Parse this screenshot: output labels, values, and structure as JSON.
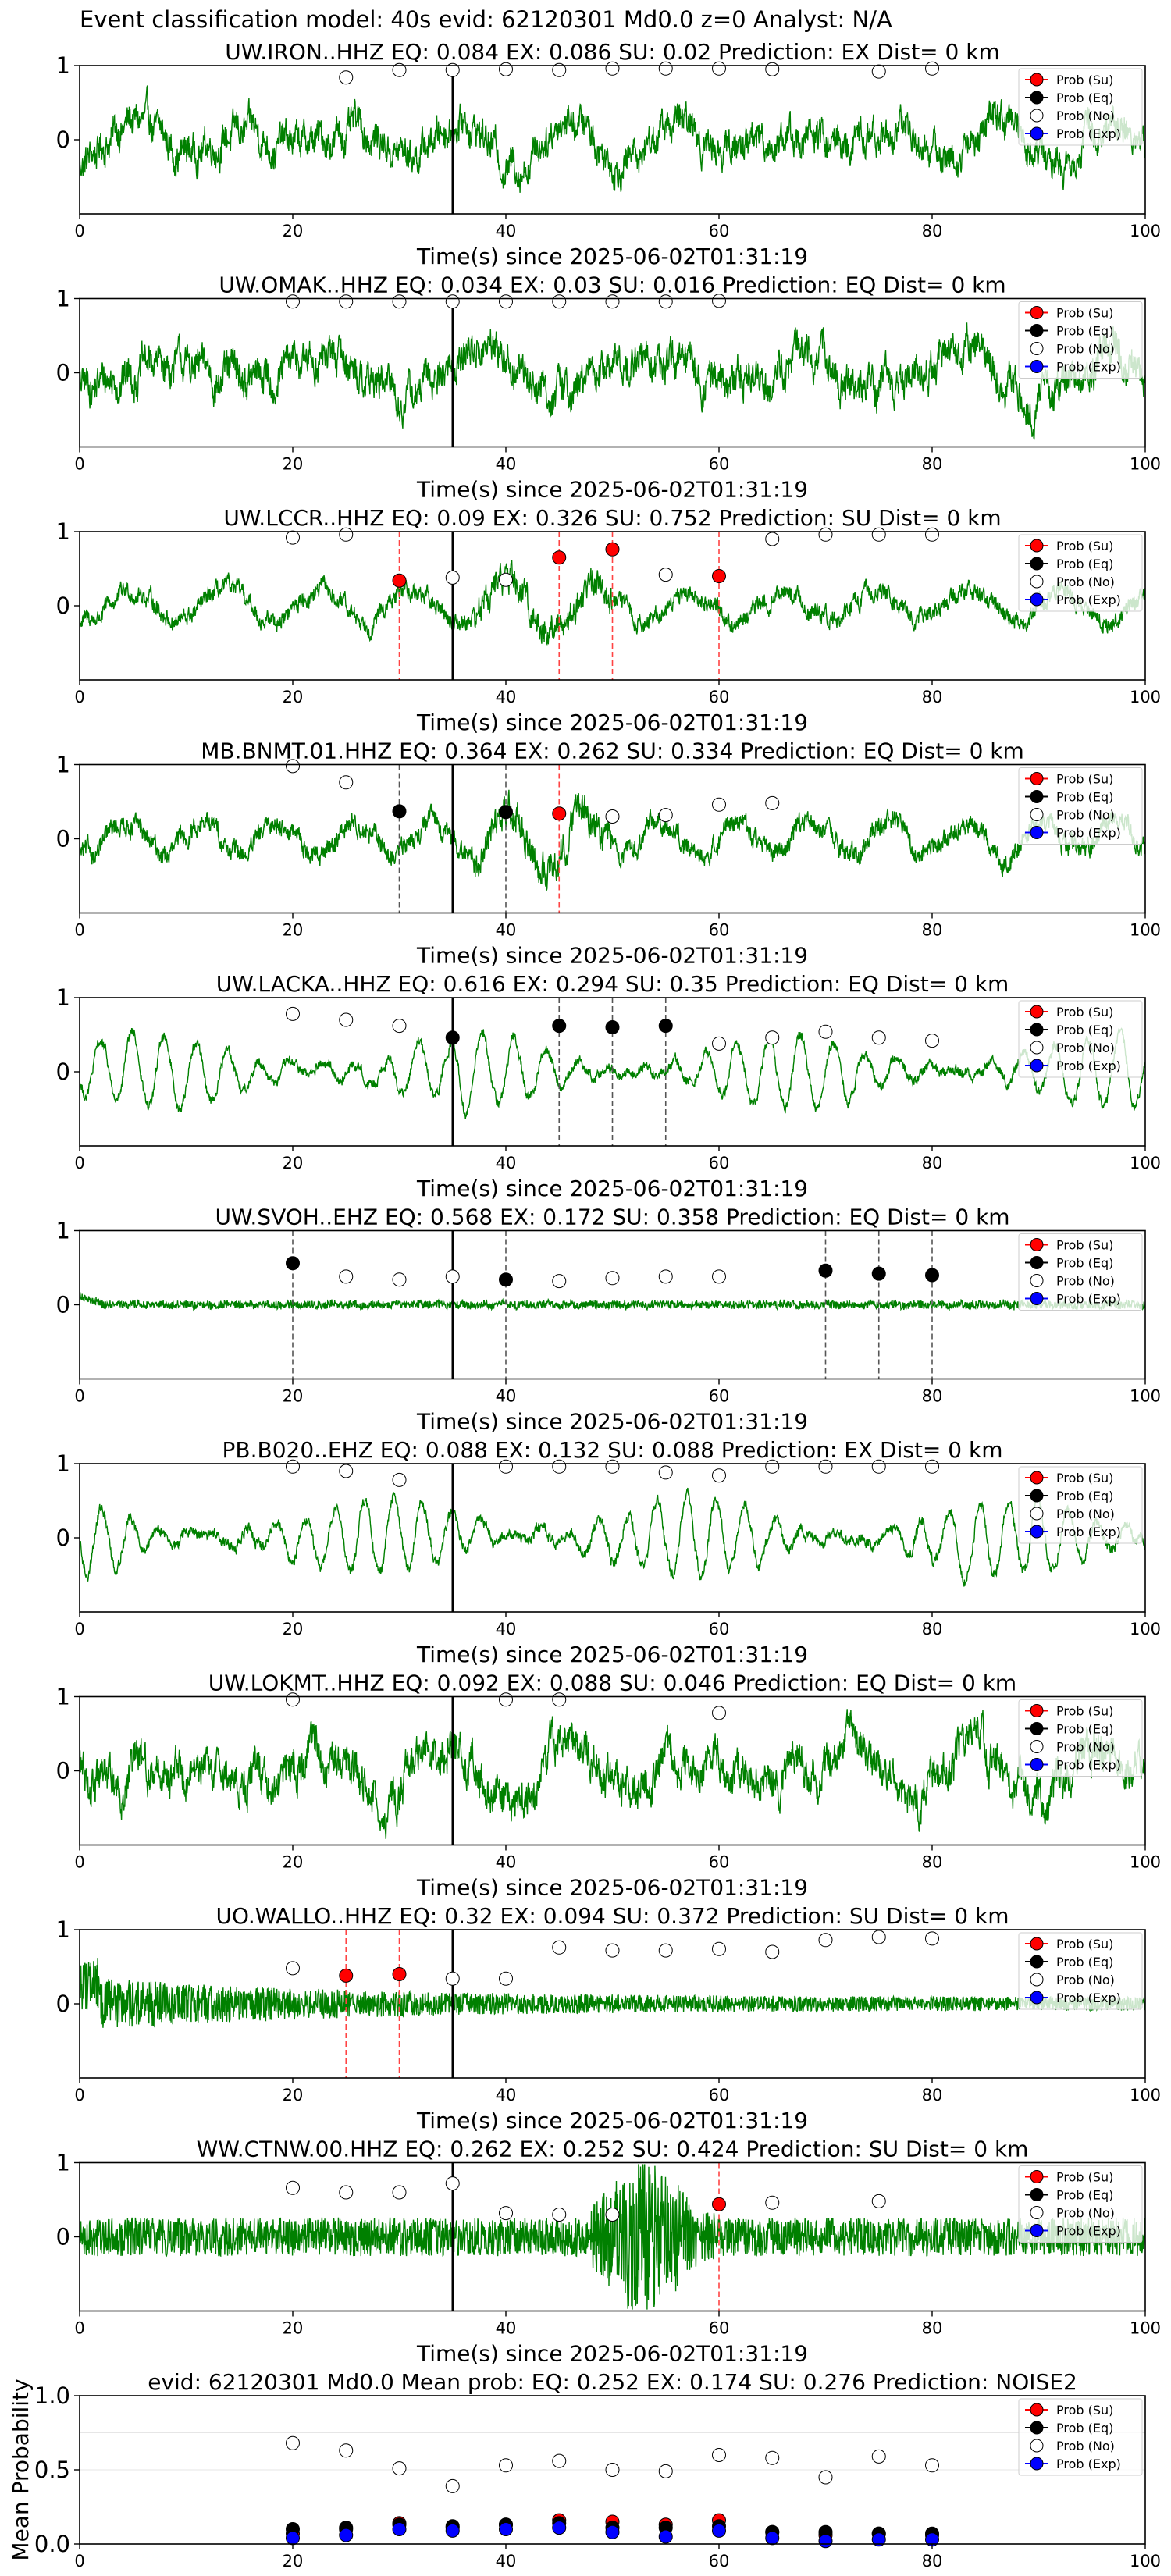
{
  "suptitle": "Event classification model: 40s evid: 62120301 Md0.0 z=0 Analyst: N/A",
  "colors": {
    "waveform": "#008000",
    "su": "#ff0000",
    "eq": "#000000",
    "no": "#ffffff",
    "exp": "#0000ff",
    "su_vline": "#ff4444",
    "eq_vline": "#555555",
    "arrival_line": "#000000"
  },
  "legend": [
    "Prob (Su)",
    "Prob (Eq)",
    "Prob (No)",
    "Prob (Exp)"
  ],
  "chart_data": [
    {
      "type": "line",
      "station": "UW.IRON..HHZ",
      "title": "UW.IRON..HHZ   EQ: 0.084  EX: 0.086  SU: 0.02   Prediction: EX    Dist= 0 km",
      "xlabel": "Time(s) since 2025-06-02T01:31:19",
      "xlim": [
        0,
        100
      ],
      "ylim": [
        -1,
        1
      ],
      "xticks": [
        0,
        20,
        40,
        60,
        80,
        100
      ],
      "yticks": [
        0,
        1
      ],
      "arrival_time": 35,
      "waveform_style": "noisy",
      "waveform_amplitude": 0.6,
      "markers": {
        "no": [
          [
            25,
            0.84
          ],
          [
            30,
            0.94
          ],
          [
            35,
            0.94
          ],
          [
            40,
            0.95
          ],
          [
            45,
            0.94
          ],
          [
            50,
            0.96
          ],
          [
            55,
            0.96
          ],
          [
            60,
            0.96
          ],
          [
            65,
            0.95
          ],
          [
            75,
            0.92
          ],
          [
            80,
            0.96
          ]
        ],
        "su": [],
        "eq": [],
        "exp": []
      },
      "vlines": []
    },
    {
      "type": "line",
      "station": "UW.OMAK..HHZ",
      "title": "UW.OMAK..HHZ   EQ: 0.034  EX: 0.03  SU: 0.016   Prediction: EQ    Dist= 0 km",
      "xlabel": "Time(s) since 2025-06-02T01:31:19",
      "xlim": [
        0,
        100
      ],
      "ylim": [
        -1,
        1
      ],
      "xticks": [
        0,
        20,
        40,
        60,
        80,
        100
      ],
      "yticks": [
        0,
        1
      ],
      "arrival_time": 35,
      "waveform_style": "noisy",
      "waveform_amplitude": 0.65,
      "markers": {
        "no": [
          [
            20,
            0.96
          ],
          [
            25,
            0.96
          ],
          [
            30,
            0.96
          ],
          [
            35,
            0.96
          ],
          [
            40,
            0.96
          ],
          [
            45,
            0.96
          ],
          [
            50,
            0.96
          ],
          [
            55,
            0.96
          ],
          [
            60,
            0.97
          ]
        ],
        "su": [],
        "eq": [],
        "exp": []
      },
      "vlines": []
    },
    {
      "type": "line",
      "station": "UW.LCCR..HHZ",
      "title": "UW.LCCR..HHZ   EQ: 0.09  EX: 0.326  SU: 0.752   Prediction: SU    Dist= 0 km",
      "xlabel": "Time(s) since 2025-06-02T01:31:19",
      "xlim": [
        0,
        100
      ],
      "ylim": [
        -1,
        1
      ],
      "xticks": [
        0,
        20,
        40,
        60,
        80,
        100
      ],
      "yticks": [
        0,
        1
      ],
      "arrival_time": 35,
      "waveform_style": "mixed",
      "waveform_amplitude": 0.4,
      "markers": {
        "no": [
          [
            20,
            0.92
          ],
          [
            25,
            0.96
          ],
          [
            35,
            0.38
          ],
          [
            40,
            0.35
          ],
          [
            55,
            0.42
          ],
          [
            65,
            0.9
          ],
          [
            70,
            0.96
          ],
          [
            75,
            0.96
          ],
          [
            80,
            0.96
          ]
        ],
        "su": [
          [
            30,
            0.34
          ],
          [
            45,
            0.65
          ],
          [
            50,
            0.76
          ],
          [
            60,
            0.4
          ]
        ],
        "eq": [],
        "exp": []
      },
      "vlines": [
        {
          "x": 30,
          "kind": "su"
        },
        {
          "x": 45,
          "kind": "su"
        },
        {
          "x": 50,
          "kind": "su"
        },
        {
          "x": 60,
          "kind": "su"
        }
      ]
    },
    {
      "type": "line",
      "station": "MB.BNMT.01.HHZ",
      "title": "MB.BNMT.01.HHZ   EQ: 0.364  EX: 0.262  SU: 0.334   Prediction: EQ    Dist= 0 km",
      "xlabel": "Time(s) since 2025-06-02T01:31:19",
      "xlim": [
        0,
        100
      ],
      "ylim": [
        -1,
        1
      ],
      "xticks": [
        0,
        20,
        40,
        60,
        80,
        100
      ],
      "yticks": [
        0,
        1
      ],
      "arrival_time": 35,
      "waveform_style": "mixed",
      "waveform_amplitude": 0.45,
      "markers": {
        "no": [
          [
            20,
            0.98
          ],
          [
            25,
            0.76
          ],
          [
            50,
            0.3
          ],
          [
            55,
            0.32
          ],
          [
            60,
            0.46
          ],
          [
            65,
            0.48
          ]
        ],
        "su": [
          [
            45,
            0.34
          ]
        ],
        "eq": [
          [
            30,
            0.37
          ],
          [
            40,
            0.36
          ]
        ],
        "exp": []
      },
      "vlines": [
        {
          "x": 30,
          "kind": "eq"
        },
        {
          "x": 40,
          "kind": "eq"
        },
        {
          "x": 45,
          "kind": "su"
        }
      ]
    },
    {
      "type": "line",
      "station": "UW.LACKA..HHZ",
      "title": "UW.LACKA..HHZ   EQ: 0.616  EX: 0.294  SU: 0.35   Prediction: EQ    Dist= 0 km",
      "xlabel": "Time(s) since 2025-06-02T01:31:19",
      "xlim": [
        0,
        100
      ],
      "ylim": [
        -1,
        1
      ],
      "xticks": [
        0,
        20,
        40,
        60,
        80,
        100
      ],
      "yticks": [
        0,
        1
      ],
      "arrival_time": 35,
      "waveform_style": "smooth",
      "waveform_amplitude": 0.6,
      "markers": {
        "no": [
          [
            20,
            0.78
          ],
          [
            25,
            0.7
          ],
          [
            30,
            0.62
          ],
          [
            60,
            0.38
          ],
          [
            65,
            0.46
          ],
          [
            70,
            0.54
          ],
          [
            75,
            0.46
          ],
          [
            80,
            0.42
          ]
        ],
        "su": [],
        "eq": [
          [
            35,
            0.46
          ],
          [
            45,
            0.62
          ],
          [
            50,
            0.6
          ],
          [
            55,
            0.62
          ]
        ],
        "exp": []
      },
      "vlines": [
        {
          "x": 45,
          "kind": "eq"
        },
        {
          "x": 50,
          "kind": "eq"
        },
        {
          "x": 55,
          "kind": "eq"
        }
      ]
    },
    {
      "type": "line",
      "station": "UW.SVOH..EHZ",
      "title": "UW.SVOH..EHZ   EQ: 0.568  EX: 0.172  SU: 0.358   Prediction: EQ    Dist= 0 km",
      "xlabel": "Time(s) since 2025-06-02T01:31:19",
      "xlim": [
        0,
        100
      ],
      "ylim": [
        -1,
        1
      ],
      "xticks": [
        0,
        20,
        40,
        60,
        80,
        100
      ],
      "yticks": [
        0,
        1
      ],
      "arrival_time": 35,
      "waveform_style": "quiet",
      "waveform_amplitude": 0.12,
      "markers": {
        "no": [
          [
            25,
            0.38
          ],
          [
            30,
            0.34
          ],
          [
            35,
            0.38
          ],
          [
            45,
            0.32
          ],
          [
            50,
            0.36
          ],
          [
            55,
            0.38
          ],
          [
            60,
            0.38
          ]
        ],
        "su": [],
        "eq": [
          [
            20,
            0.56
          ],
          [
            40,
            0.34
          ],
          [
            70,
            0.46
          ],
          [
            75,
            0.42
          ],
          [
            80,
            0.4
          ]
        ],
        "exp": []
      },
      "vlines": [
        {
          "x": 20,
          "kind": "eq"
        },
        {
          "x": 40,
          "kind": "eq"
        },
        {
          "x": 70,
          "kind": "eq"
        },
        {
          "x": 75,
          "kind": "eq"
        },
        {
          "x": 80,
          "kind": "eq"
        }
      ]
    },
    {
      "type": "line",
      "station": "PB.B020..EHZ",
      "title": "PB.B020..EHZ   EQ: 0.088  EX: 0.132  SU: 0.088   Prediction: EX    Dist= 0 km",
      "xlabel": "Time(s) since 2025-06-02T01:31:19",
      "xlim": [
        0,
        100
      ],
      "ylim": [
        -1,
        1
      ],
      "xticks": [
        0,
        20,
        40,
        60,
        80,
        100
      ],
      "yticks": [
        0,
        1
      ],
      "arrival_time": 35,
      "waveform_style": "smooth",
      "waveform_amplitude": 0.65,
      "markers": {
        "no": [
          [
            20,
            0.96
          ],
          [
            25,
            0.9
          ],
          [
            30,
            0.78
          ],
          [
            40,
            0.96
          ],
          [
            45,
            0.96
          ],
          [
            50,
            0.96
          ],
          [
            55,
            0.88
          ],
          [
            60,
            0.84
          ],
          [
            65,
            0.96
          ],
          [
            70,
            0.96
          ],
          [
            75,
            0.96
          ],
          [
            80,
            0.96
          ]
        ],
        "su": [],
        "eq": [],
        "exp": []
      },
      "vlines": []
    },
    {
      "type": "line",
      "station": "UW.LOKMT..HHZ",
      "title": "UW.LOKMT..HHZ   EQ: 0.092  EX: 0.088  SU: 0.046   Prediction: EQ    Dist= 0 km",
      "xlabel": "Time(s) since 2025-06-02T01:31:19",
      "xlim": [
        0,
        100
      ],
      "ylim": [
        -1,
        1
      ],
      "xticks": [
        0,
        20,
        40,
        60,
        80,
        100
      ],
      "yticks": [
        0,
        1
      ],
      "arrival_time": 35,
      "waveform_style": "noisy",
      "waveform_amplitude": 0.7,
      "markers": {
        "no": [
          [
            20,
            0.96
          ],
          [
            40,
            0.96
          ],
          [
            45,
            0.96
          ],
          [
            60,
            0.78
          ]
        ],
        "su": [],
        "eq": [],
        "exp": []
      },
      "vlines": []
    },
    {
      "type": "line",
      "station": "UO.WALLO..HHZ",
      "title": "UO.WALLO..HHZ   EQ: 0.32  EX: 0.094  SU: 0.372   Prediction: SU    Dist= 0 km",
      "xlabel": "Time(s) since 2025-06-02T01:31:19",
      "xlim": [
        0,
        100
      ],
      "ylim": [
        -1,
        1
      ],
      "xticks": [
        0,
        20,
        40,
        60,
        80,
        100
      ],
      "yticks": [
        0,
        1
      ],
      "arrival_time": 35,
      "waveform_style": "decay",
      "waveform_amplitude": 0.35,
      "markers": {
        "no": [
          [
            20,
            0.48
          ],
          [
            35,
            0.34
          ],
          [
            40,
            0.34
          ],
          [
            45,
            0.76
          ],
          [
            50,
            0.72
          ],
          [
            55,
            0.72
          ],
          [
            60,
            0.74
          ],
          [
            65,
            0.7
          ],
          [
            70,
            0.86
          ],
          [
            75,
            0.9
          ],
          [
            80,
            0.88
          ]
        ],
        "su": [
          [
            25,
            0.38
          ],
          [
            30,
            0.4
          ]
        ],
        "eq": [],
        "exp": []
      },
      "vlines": [
        {
          "x": 25,
          "kind": "su"
        },
        {
          "x": 30,
          "kind": "su"
        }
      ]
    },
    {
      "type": "line",
      "station": "WW.CTNW.00.HHZ",
      "title": "WW.CTNW.00.HHZ   EQ: 0.262  EX: 0.252  SU: 0.424   Prediction: SU    Dist= 0 km",
      "xlabel": "Time(s) since 2025-06-02T01:31:19",
      "xlim": [
        0,
        100
      ],
      "ylim": [
        -1,
        1
      ],
      "xticks": [
        0,
        20,
        40,
        60,
        80,
        100
      ],
      "yticks": [
        0,
        1
      ],
      "arrival_time": 35,
      "waveform_style": "burst",
      "waveform_amplitude": 0.4,
      "markers": {
        "no": [
          [
            20,
            0.66
          ],
          [
            25,
            0.6
          ],
          [
            30,
            0.6
          ],
          [
            35,
            0.72
          ],
          [
            40,
            0.32
          ],
          [
            45,
            0.3
          ],
          [
            50,
            0.3
          ],
          [
            65,
            0.46
          ],
          [
            75,
            0.48
          ]
        ],
        "su": [
          [
            60,
            0.44
          ]
        ],
        "eq": [],
        "exp": []
      },
      "vlines": [
        {
          "x": 60,
          "kind": "su"
        }
      ]
    },
    {
      "type": "scatter",
      "station": "mean",
      "title": "evid: 62120301  Md0.0   Mean prob:   EQ: 0.252  EX: 0.174  SU: 0.276   Prediction: NOISE2",
      "ylabel": "Mean Probability",
      "xlim": [
        0,
        100
      ],
      "ylim": [
        0,
        1
      ],
      "xticks": [
        0,
        20,
        40,
        60,
        80,
        100
      ],
      "yticks": [
        0.0,
        0.5,
        1.0
      ],
      "ytick_labels": [
        "0.0",
        "0.5",
        "1.0"
      ],
      "markers": {
        "no": [
          [
            20,
            0.68
          ],
          [
            25,
            0.63
          ],
          [
            30,
            0.51
          ],
          [
            35,
            0.39
          ],
          [
            40,
            0.53
          ],
          [
            45,
            0.56
          ],
          [
            50,
            0.5
          ],
          [
            55,
            0.49
          ],
          [
            60,
            0.6
          ],
          [
            65,
            0.58
          ],
          [
            70,
            0.45
          ],
          [
            75,
            0.59
          ],
          [
            80,
            0.53
          ]
        ],
        "su": [
          [
            20,
            0.07
          ],
          [
            25,
            0.1
          ],
          [
            30,
            0.14
          ],
          [
            35,
            0.11
          ],
          [
            40,
            0.13
          ],
          [
            45,
            0.16
          ],
          [
            50,
            0.15
          ],
          [
            55,
            0.13
          ],
          [
            60,
            0.16
          ],
          [
            65,
            0.08
          ],
          [
            70,
            0.06
          ],
          [
            75,
            0.07
          ],
          [
            80,
            0.06
          ]
        ],
        "eq": [
          [
            20,
            0.1
          ],
          [
            25,
            0.11
          ],
          [
            30,
            0.13
          ],
          [
            35,
            0.12
          ],
          [
            40,
            0.13
          ],
          [
            45,
            0.14
          ],
          [
            50,
            0.11
          ],
          [
            55,
            0.11
          ],
          [
            60,
            0.12
          ],
          [
            65,
            0.08
          ],
          [
            70,
            0.08
          ],
          [
            75,
            0.07
          ],
          [
            80,
            0.07
          ]
        ],
        "exp": [
          [
            20,
            0.04
          ],
          [
            25,
            0.06
          ],
          [
            30,
            0.1
          ],
          [
            35,
            0.09
          ],
          [
            40,
            0.1
          ],
          [
            45,
            0.11
          ],
          [
            50,
            0.08
          ],
          [
            55,
            0.05
          ],
          [
            60,
            0.09
          ],
          [
            65,
            0.04
          ],
          [
            70,
            0.02
          ],
          [
            75,
            0.03
          ],
          [
            80,
            0.03
          ]
        ]
      },
      "vlines": []
    }
  ]
}
